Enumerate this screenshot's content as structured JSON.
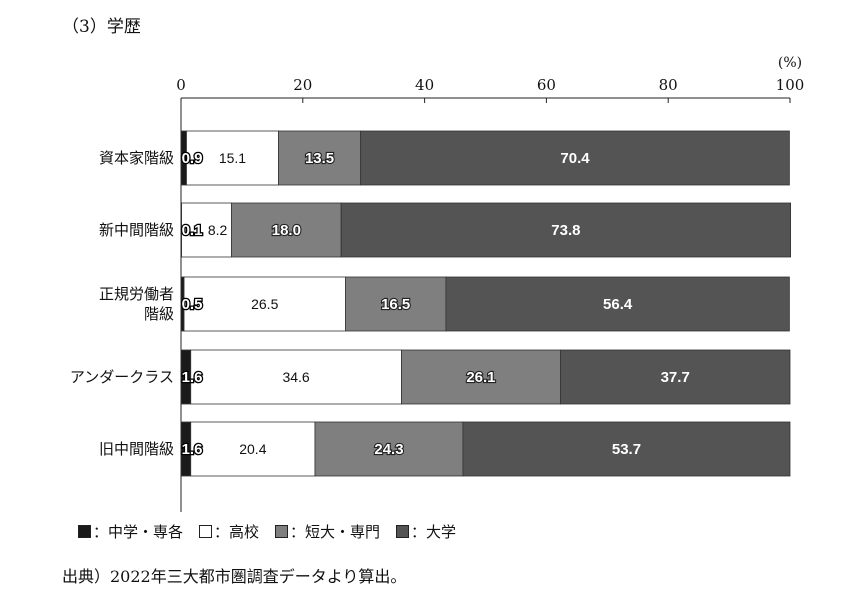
{
  "section_title": "（3）学歴",
  "footnote": "出典）2022年三大都市圏調査データより算出。",
  "colors": {
    "中学・専各": "#1a1a1a",
    "高校": "#ffffff",
    "短大・専門": "#7f7f7f",
    "大学": "#545454"
  },
  "chart_data": {
    "type": "bar",
    "orientation": "horizontal",
    "stacked": true,
    "unit_label": "(%)",
    "xlim": [
      0,
      100
    ],
    "x_ticks": [
      "0",
      "20",
      "40",
      "60",
      "80",
      "100"
    ],
    "categories": [
      [
        "資本家階級"
      ],
      [
        "新中間階級"
      ],
      [
        "正規労働者",
        "階級"
      ],
      [
        "アンダークラス"
      ],
      [
        "旧中間階級"
      ]
    ],
    "series": [
      {
        "name": "中学・専各",
        "values": [
          0.9,
          0.1,
          0.5,
          1.6,
          1.6
        ],
        "labels": [
          "0.9",
          "0.1",
          "0.5",
          "1.6",
          "1.6"
        ]
      },
      {
        "name": "高校",
        "values": [
          15.1,
          8.2,
          26.5,
          34.6,
          20.4
        ],
        "labels": [
          "15.1",
          "8.2",
          "26.5",
          "34.6",
          "20.4"
        ]
      },
      {
        "name": "短大・専門",
        "values": [
          13.5,
          18.0,
          16.5,
          26.1,
          24.3
        ],
        "labels": [
          "13.5",
          "18.0",
          "16.5",
          "26.1",
          "24.3"
        ]
      },
      {
        "name": "大学",
        "values": [
          70.4,
          73.8,
          56.4,
          37.7,
          53.7
        ],
        "labels": [
          "70.4",
          "73.8",
          "56.4",
          "37.7",
          "53.7"
        ]
      }
    ],
    "legend_position": "bottom-left",
    "grid": false
  },
  "legend": [
    {
      "key": "中学・専各",
      "label": "：中学・専各"
    },
    {
      "key": "高校",
      "label": "：高校"
    },
    {
      "key": "短大・専門",
      "label": "：短大・専門"
    },
    {
      "key": "大学",
      "label": "：大学"
    }
  ]
}
